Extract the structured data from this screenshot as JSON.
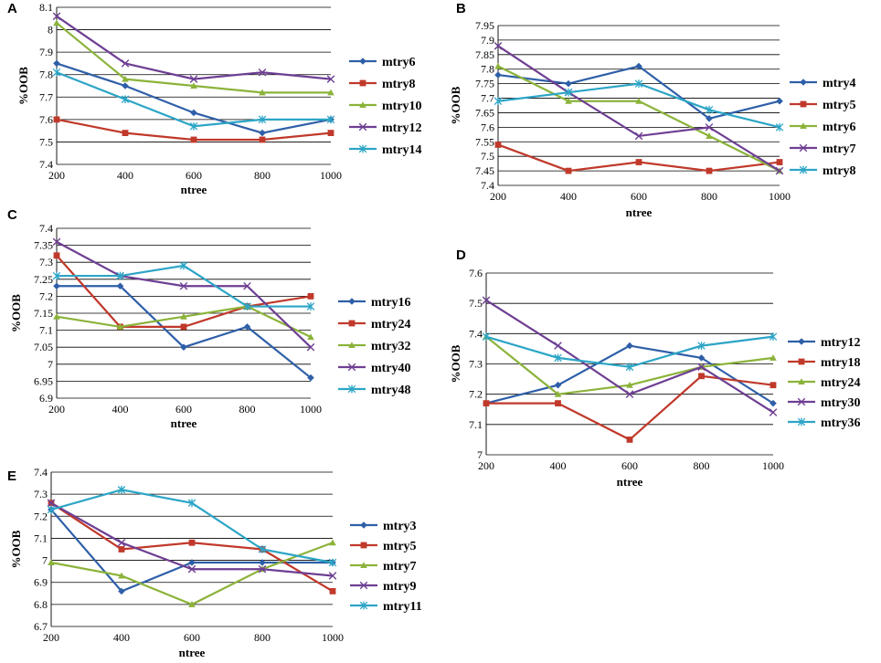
{
  "colors": {
    "blue": "#2E5FA8",
    "red": "#C0392B",
    "green": "#8BB33A",
    "purple": "#6E3F93",
    "cyan": "#2CA5C6",
    "grid": "#000000"
  },
  "chart_data": [
    {
      "panel": "A",
      "type": "line",
      "xlabel": "ntree",
      "ylabel": "%OOB",
      "x": [
        200,
        400,
        600,
        800,
        1000
      ],
      "ylim": [
        7.4,
        8.1
      ],
      "yticks": [
        7.4,
        7.5,
        7.6,
        7.7,
        7.8,
        7.9,
        8,
        8.1
      ],
      "yticklabels": [
        "7.4",
        "7.5",
        "7.6",
        "7.7",
        "7.8",
        "7.9",
        "8",
        "8.1"
      ],
      "series": [
        {
          "name": "mtry6",
          "marker": "diamond",
          "color": "blue",
          "values": [
            7.85,
            7.75,
            7.63,
            7.54,
            7.6
          ]
        },
        {
          "name": "mtry8",
          "marker": "square",
          "color": "red",
          "values": [
            7.6,
            7.54,
            7.51,
            7.51,
            7.54
          ]
        },
        {
          "name": "mtry10",
          "marker": "triangle",
          "color": "green",
          "values": [
            8.03,
            7.78,
            7.75,
            7.72,
            7.72
          ]
        },
        {
          "name": "mtry12",
          "marker": "x",
          "color": "purple",
          "values": [
            8.06,
            7.85,
            7.78,
            7.81,
            7.78
          ]
        },
        {
          "name": "mtry14",
          "marker": "star",
          "color": "cyan",
          "values": [
            7.81,
            7.69,
            7.57,
            7.6,
            7.6
          ]
        }
      ]
    },
    {
      "panel": "B",
      "type": "line",
      "xlabel": "ntree",
      "ylabel": "%OOB",
      "x": [
        200,
        400,
        600,
        800,
        1000
      ],
      "ylim": [
        7.4,
        7.95
      ],
      "yticks": [
        7.4,
        7.45,
        7.5,
        7.55,
        7.6,
        7.65,
        7.7,
        7.75,
        7.8,
        7.85,
        7.9,
        7.95
      ],
      "yticklabels": [
        "7.4",
        "7.45",
        "7.5",
        "7.55",
        "7.6",
        "7.65",
        "7.7",
        "7.75",
        "7.8",
        "7.85",
        "7.9",
        "7.95"
      ],
      "series": [
        {
          "name": "mtry4",
          "marker": "diamond",
          "color": "blue",
          "values": [
            7.78,
            7.75,
            7.81,
            7.63,
            7.69
          ]
        },
        {
          "name": "mtry5",
          "marker": "square",
          "color": "red",
          "values": [
            7.54,
            7.45,
            7.48,
            7.45,
            7.48
          ]
        },
        {
          "name": "mtry6",
          "marker": "triangle",
          "color": "green",
          "values": [
            7.81,
            7.69,
            7.69,
            7.57,
            7.45
          ]
        },
        {
          "name": "mtry7",
          "marker": "x",
          "color": "purple",
          "values": [
            7.88,
            7.72,
            7.57,
            7.6,
            7.45
          ]
        },
        {
          "name": "mtry8",
          "marker": "star",
          "color": "cyan",
          "values": [
            7.69,
            7.72,
            7.75,
            7.66,
            7.6
          ]
        }
      ]
    },
    {
      "panel": "C",
      "type": "line",
      "xlabel": "ntree",
      "ylabel": "%OOB",
      "x": [
        200,
        400,
        600,
        800,
        1000
      ],
      "ylim": [
        6.9,
        7.4
      ],
      "yticks": [
        6.9,
        6.95,
        7,
        7.05,
        7.1,
        7.15,
        7.2,
        7.25,
        7.3,
        7.35,
        7.4
      ],
      "yticklabels": [
        "6.9",
        "6.95",
        "7",
        "7.05",
        "7.1",
        "7.15",
        "7.2",
        "7.25",
        "7.3",
        "7.35",
        "7.4"
      ],
      "series": [
        {
          "name": "mtry16",
          "marker": "diamond",
          "color": "blue",
          "values": [
            7.23,
            7.23,
            7.05,
            7.11,
            6.96
          ]
        },
        {
          "name": "mtry24",
          "marker": "square",
          "color": "red",
          "values": [
            7.32,
            7.11,
            7.11,
            7.17,
            7.2
          ]
        },
        {
          "name": "mtry32",
          "marker": "triangle",
          "color": "green",
          "values": [
            7.14,
            7.11,
            7.14,
            7.17,
            7.08
          ]
        },
        {
          "name": "mtry40",
          "marker": "x",
          "color": "purple",
          "values": [
            7.36,
            7.26,
            7.23,
            7.23,
            7.05
          ]
        },
        {
          "name": "mtry48",
          "marker": "star",
          "color": "cyan",
          "values": [
            7.26,
            7.26,
            7.29,
            7.17,
            7.17
          ]
        }
      ]
    },
    {
      "panel": "D",
      "type": "line",
      "xlabel": "ntree",
      "ylabel": "%OOB",
      "x": [
        200,
        400,
        600,
        800,
        1000
      ],
      "ylim": [
        7.0,
        7.6
      ],
      "yticks": [
        7,
        7.1,
        7.2,
        7.3,
        7.4,
        7.5,
        7.6
      ],
      "yticklabels": [
        "7",
        "7.1",
        "7.2",
        "7.3",
        "7.4",
        "7.5",
        "7.6"
      ],
      "series": [
        {
          "name": "mtry12",
          "marker": "diamond",
          "color": "blue",
          "values": [
            7.17,
            7.23,
            7.36,
            7.32,
            7.17
          ]
        },
        {
          "name": "mtry18",
          "marker": "square",
          "color": "red",
          "values": [
            7.17,
            7.17,
            7.05,
            7.26,
            7.23
          ]
        },
        {
          "name": "mtry24",
          "marker": "triangle",
          "color": "green",
          "values": [
            7.39,
            7.2,
            7.23,
            7.29,
            7.32
          ]
        },
        {
          "name": "mtry30",
          "marker": "x",
          "color": "purple",
          "values": [
            7.51,
            7.36,
            7.2,
            7.29,
            7.14
          ]
        },
        {
          "name": "mtry36",
          "marker": "star",
          "color": "cyan",
          "values": [
            7.39,
            7.32,
            7.29,
            7.36,
            7.39
          ]
        }
      ]
    },
    {
      "panel": "E",
      "type": "line",
      "xlabel": "ntree",
      "ylabel": "%OOB",
      "x": [
        200,
        400,
        600,
        800,
        1000
      ],
      "ylim": [
        6.7,
        7.4
      ],
      "yticks": [
        6.7,
        6.8,
        6.9,
        7,
        7.1,
        7.2,
        7.3,
        7.4
      ],
      "yticklabels": [
        "6.7",
        "6.8",
        "6.9",
        "7",
        "7.1",
        "7.2",
        "7.3",
        "7.4"
      ],
      "series": [
        {
          "name": "mtry3",
          "marker": "diamond",
          "color": "blue",
          "values": [
            7.23,
            6.86,
            6.99,
            6.99,
            6.99
          ]
        },
        {
          "name": "mtry5",
          "marker": "square",
          "color": "red",
          "values": [
            7.26,
            7.05,
            7.08,
            7.05,
            6.86
          ]
        },
        {
          "name": "mtry7",
          "marker": "triangle",
          "color": "green",
          "values": [
            6.99,
            6.93,
            6.8,
            6.96,
            7.08
          ]
        },
        {
          "name": "mtry9",
          "marker": "x",
          "color": "purple",
          "values": [
            7.26,
            7.08,
            6.96,
            6.96,
            6.93
          ]
        },
        {
          "name": "mtry11",
          "marker": "star",
          "color": "cyan",
          "values": [
            7.23,
            7.32,
            7.26,
            7.05,
            6.99
          ]
        }
      ]
    }
  ]
}
